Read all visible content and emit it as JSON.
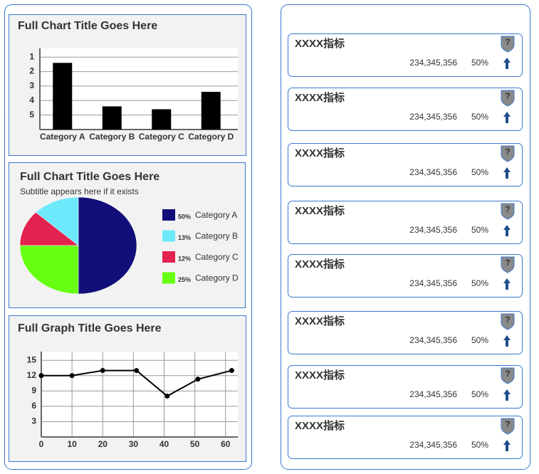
{
  "chart_data": [
    {
      "type": "bar",
      "title": "Full Chart Title Goes Here",
      "categories": [
        "Category A",
        "Category B",
        "Category C",
        "Category D"
      ],
      "values": [
        4.6,
        1.6,
        1.4,
        2.6
      ],
      "color": "#000000",
      "ylim": [
        0,
        5.6
      ],
      "yticks": [
        {
          "value": 1,
          "label": "5"
        },
        {
          "value": 2,
          "label": "4"
        },
        {
          "value": 3,
          "label": "3"
        },
        {
          "value": 4,
          "label": "2"
        },
        {
          "value": 5,
          "label": "1"
        }
      ],
      "grid": true
    },
    {
      "type": "pie",
      "title": "Full Chart Title Goes Here",
      "subtitle": "Subtitle appears here if it exists",
      "categories": [
        "Category A",
        "Category B",
        "Category C",
        "Category D"
      ],
      "values": [
        50,
        13,
        12,
        25
      ],
      "value_labels": [
        "50%",
        "13%",
        "12%",
        "25%"
      ],
      "colors": [
        "#120e7a",
        "#6ee9fb",
        "#e3224f",
        "#66ff11"
      ],
      "legend": "right"
    },
    {
      "type": "line",
      "title": "Full Graph Title Goes Here",
      "x": [
        0,
        10,
        20,
        31,
        41,
        51,
        62
      ],
      "values": [
        12,
        12,
        13,
        13,
        8,
        11.3,
        13
      ],
      "color": "#000000",
      "xlim": [
        0,
        64
      ],
      "xticks": [
        0,
        10,
        20,
        30,
        40,
        50,
        60
      ],
      "ylim": [
        0,
        16.7
      ],
      "yticks": [
        3,
        6,
        9,
        12,
        15
      ],
      "grid": true
    }
  ],
  "card_icon": "?",
  "cards": [
    {
      "title": "XXXX指标",
      "value": "234,345,356",
      "percent": "50%"
    },
    {
      "title": "XXXX指标",
      "value": "234,345,356",
      "percent": "50%"
    },
    {
      "title": "XXXX指标",
      "value": "234,345,356",
      "percent": "50%"
    },
    {
      "title": "XXXX指标",
      "value": "234,345,356",
      "percent": "50%"
    },
    {
      "title": "XXXX指标",
      "value": "234,345,356",
      "percent": "50%"
    },
    {
      "title": "XXXX指标",
      "value": "234,345,356",
      "percent": "50%"
    },
    {
      "title": "XXXX指标",
      "value": "234,345,356",
      "percent": "50%"
    },
    {
      "title": "XXXX指标",
      "value": "234,345,356",
      "percent": "50%"
    }
  ]
}
